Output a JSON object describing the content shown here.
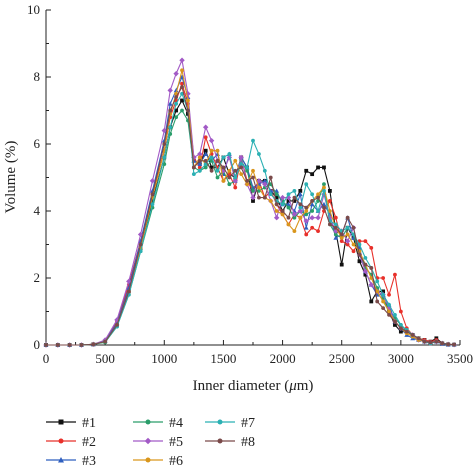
{
  "chart_data": {
    "type": "line",
    "title": "",
    "xlabel": "Inner diameter (μm)",
    "xlabel_parts": [
      "Inner diameter (",
      "μ",
      "m)"
    ],
    "ylabel": "Volume (%)",
    "xlim": [
      0,
      3500
    ],
    "ylim": [
      0,
      10
    ],
    "xticks": [
      0,
      500,
      1000,
      1500,
      2000,
      2500,
      3000,
      3500
    ],
    "xtick_labels": [
      "0",
      "500",
      "1000",
      "1500",
      "2000",
      "2500",
      "3000",
      "3500"
    ],
    "yticks": [
      0,
      2,
      4,
      6,
      8,
      10
    ],
    "ytick_labels": [
      "0",
      "2",
      "4",
      "6",
      "8",
      "10"
    ],
    "grid": false,
    "legend_placement": "below",
    "series": [
      {
        "name": "#1",
        "color": "#111111",
        "marker": "square",
        "x": [
          0,
          100,
          200,
          300,
          400,
          500,
          600,
          700,
          800,
          900,
          1000,
          1050,
          1100,
          1150,
          1200,
          1250,
          1300,
          1350,
          1400,
          1450,
          1500,
          1550,
          1600,
          1650,
          1700,
          1750,
          1800,
          1850,
          1900,
          1950,
          2000,
          2050,
          2100,
          2150,
          2200,
          2250,
          2300,
          2350,
          2400,
          2450,
          2500,
          2550,
          2600,
          2650,
          2700,
          2750,
          2800,
          2850,
          2900,
          2950,
          3000,
          3050,
          3100,
          3150,
          3200,
          3250,
          3300,
          3350,
          3400,
          3450
        ],
        "y": [
          0,
          0,
          0,
          0,
          0.02,
          0.1,
          0.6,
          1.6,
          2.9,
          4.3,
          5.6,
          6.5,
          7.0,
          7.3,
          6.9,
          5.5,
          5.4,
          5.8,
          5.3,
          5.3,
          5.6,
          5.1,
          5.0,
          5.6,
          5.3,
          4.3,
          4.9,
          4.9,
          4.6,
          4.4,
          4.0,
          4.3,
          4.3,
          4.6,
          5.2,
          5.1,
          5.3,
          5.3,
          4.6,
          3.4,
          2.4,
          3.5,
          3.2,
          2.5,
          2.1,
          1.3,
          1.6,
          1.6,
          1.0,
          0.6,
          0.4,
          0.4,
          0.3,
          0.2,
          0.15,
          0.1,
          0.2,
          0.05,
          0.02,
          0.01
        ]
      },
      {
        "name": "#2",
        "color": "#e8302a",
        "marker": "circle",
        "x": [
          0,
          100,
          200,
          300,
          400,
          500,
          600,
          700,
          800,
          900,
          1000,
          1050,
          1100,
          1150,
          1200,
          1250,
          1300,
          1350,
          1400,
          1450,
          1500,
          1550,
          1600,
          1650,
          1700,
          1750,
          1800,
          1850,
          1900,
          1950,
          2000,
          2050,
          2100,
          2150,
          2200,
          2250,
          2300,
          2350,
          2400,
          2450,
          2500,
          2550,
          2600,
          2650,
          2700,
          2750,
          2800,
          2850,
          2900,
          2950,
          3000,
          3050,
          3100,
          3150,
          3200,
          3250,
          3300,
          3350,
          3400,
          3450
        ],
        "y": [
          0,
          0,
          0,
          0,
          0.02,
          0.12,
          0.7,
          1.8,
          3.1,
          4.5,
          5.8,
          6.8,
          7.3,
          7.8,
          7.2,
          5.6,
          5.3,
          6.2,
          5.7,
          5.3,
          4.9,
          5.1,
          4.7,
          5.6,
          4.9,
          4.6,
          4.9,
          4.4,
          4.6,
          4.2,
          3.9,
          3.6,
          3.9,
          3.8,
          3.3,
          3.5,
          3.4,
          4.0,
          4.3,
          3.8,
          3.1,
          3.0,
          2.8,
          3.1,
          3.1,
          2.9,
          2.0,
          2.0,
          1.5,
          2.1,
          1.0,
          0.5,
          0.3,
          0.2,
          0.15,
          0.1,
          0.15,
          0.05,
          0.02,
          0.01
        ]
      },
      {
        "name": "#3",
        "color": "#2f5fbf",
        "marker": "triangle",
        "x": [
          0,
          100,
          200,
          300,
          400,
          500,
          600,
          700,
          800,
          900,
          1000,
          1050,
          1100,
          1150,
          1200,
          1250,
          1300,
          1350,
          1400,
          1450,
          1500,
          1550,
          1600,
          1650,
          1700,
          1750,
          1800,
          1850,
          1900,
          1950,
          2000,
          2050,
          2100,
          2150,
          2200,
          2250,
          2300,
          2350,
          2400,
          2450,
          2500,
          2550,
          2600,
          2650,
          2700,
          2750,
          2800,
          2850,
          2900,
          2950,
          3000,
          3050,
          3100,
          3150,
          3200,
          3250,
          3300,
          3350,
          3400,
          3450
        ],
        "y": [
          0,
          0,
          0,
          0,
          0.02,
          0.12,
          0.65,
          1.7,
          3.1,
          4.6,
          6.1,
          7.2,
          7.6,
          8.0,
          7.4,
          5.5,
          5.4,
          5.7,
          5.5,
          5.7,
          5.1,
          5.7,
          4.9,
          5.6,
          5.3,
          4.7,
          4.8,
          4.9,
          4.6,
          4.6,
          4.2,
          4.2,
          4.0,
          4.5,
          3.5,
          4.2,
          4.0,
          4.2,
          3.9,
          3.2,
          3.3,
          3.8,
          3.2,
          2.9,
          2.2,
          1.8,
          1.5,
          1.5,
          1.2,
          0.7,
          0.5,
          0.3,
          0.2,
          0.15,
          0.1,
          0.08,
          0.1,
          0.03,
          0.01,
          0.01
        ]
      },
      {
        "name": "#4",
        "color": "#2a9d6a",
        "marker": "circle",
        "x": [
          0,
          100,
          200,
          300,
          400,
          500,
          600,
          700,
          800,
          900,
          1000,
          1050,
          1100,
          1150,
          1200,
          1250,
          1300,
          1350,
          1400,
          1450,
          1500,
          1550,
          1600,
          1650,
          1700,
          1750,
          1800,
          1850,
          1900,
          1950,
          2000,
          2050,
          2100,
          2150,
          2200,
          2250,
          2300,
          2350,
          2400,
          2450,
          2500,
          2550,
          2600,
          2650,
          2700,
          2750,
          2800,
          2850,
          2900,
          2950,
          3000,
          3050,
          3100,
          3150,
          3200,
          3250,
          3300,
          3350,
          3400,
          3450
        ],
        "y": [
          0,
          0,
          0,
          0,
          0.02,
          0.08,
          0.55,
          1.5,
          2.8,
          4.1,
          5.4,
          6.3,
          6.8,
          7.0,
          6.7,
          5.3,
          5.2,
          5.3,
          5.5,
          5.0,
          5.2,
          4.8,
          4.9,
          5.5,
          5.2,
          4.6,
          4.6,
          4.7,
          4.8,
          4.5,
          4.3,
          4.1,
          3.8,
          4.0,
          3.9,
          4.0,
          4.3,
          4.8,
          3.6,
          3.3,
          3.2,
          3.5,
          3.3,
          2.7,
          2.3,
          2.1,
          1.7,
          1.4,
          1.0,
          0.8,
          0.6,
          0.4,
          0.3,
          0.2,
          0.1,
          0.05,
          0.1,
          0.05,
          0.02,
          0.01
        ]
      },
      {
        "name": "#5",
        "color": "#a25ac6",
        "marker": "diamond",
        "x": [
          0,
          100,
          200,
          300,
          400,
          500,
          600,
          700,
          800,
          900,
          1000,
          1050,
          1100,
          1150,
          1200,
          1250,
          1300,
          1350,
          1400,
          1450,
          1500,
          1550,
          1600,
          1650,
          1700,
          1750,
          1800,
          1850,
          1900,
          1950,
          2000,
          2050,
          2100,
          2150,
          2200,
          2250,
          2300,
          2350,
          2400,
          2450,
          2500,
          2550,
          2600,
          2650,
          2700,
          2750,
          2800,
          2850,
          2900,
          2950,
          3000,
          3050,
          3100,
          3150,
          3200,
          3250,
          3300,
          3350,
          3400,
          3450
        ],
        "y": [
          0,
          0,
          0,
          0,
          0.02,
          0.15,
          0.75,
          1.9,
          3.3,
          4.9,
          6.4,
          7.6,
          8.1,
          8.5,
          7.5,
          5.6,
          5.7,
          6.5,
          6.1,
          5.5,
          5.2,
          5.6,
          4.9,
          5.6,
          4.8,
          4.4,
          4.9,
          4.8,
          4.3,
          3.8,
          4.4,
          4.4,
          3.9,
          4.0,
          3.7,
          3.8,
          3.8,
          4.5,
          3.8,
          3.4,
          3.4,
          3.1,
          3.5,
          2.7,
          2.2,
          1.8,
          1.6,
          1.5,
          1.1,
          0.7,
          0.5,
          0.4,
          0.3,
          0.15,
          0.1,
          0.05,
          0.1,
          0.05,
          0.02,
          0.01
        ]
      },
      {
        "name": "#6",
        "color": "#d9961c",
        "marker": "circle",
        "x": [
          0,
          100,
          200,
          300,
          400,
          500,
          600,
          700,
          800,
          900,
          1000,
          1050,
          1100,
          1150,
          1200,
          1250,
          1300,
          1350,
          1400,
          1450,
          1500,
          1550,
          1600,
          1650,
          1700,
          1750,
          1800,
          1850,
          1900,
          1950,
          2000,
          2050,
          2100,
          2150,
          2200,
          2250,
          2300,
          2350,
          2400,
          2450,
          2500,
          2550,
          2600,
          2650,
          2700,
          2750,
          2800,
          2850,
          2900,
          2950,
          3000,
          3050,
          3100,
          3150,
          3200,
          3250,
          3300,
          3350,
          3400,
          3450
        ],
        "y": [
          0,
          0,
          0,
          0,
          0.02,
          0.1,
          0.6,
          1.6,
          2.9,
          4.4,
          5.8,
          6.9,
          7.5,
          8.2,
          7.3,
          5.3,
          5.6,
          5.4,
          5.8,
          5.8,
          4.9,
          5.2,
          5.5,
          5.1,
          4.8,
          5.2,
          4.7,
          4.4,
          4.3,
          4.0,
          3.9,
          3.6,
          3.4,
          3.8,
          4.0,
          4.3,
          4.5,
          4.7,
          4.0,
          3.5,
          3.2,
          3.3,
          3.0,
          2.8,
          2.4,
          2.0,
          1.6,
          1.3,
          1.0,
          0.7,
          0.5,
          0.35,
          0.25,
          0.15,
          0.1,
          0.05,
          0.1,
          0.05,
          0.02,
          0.01
        ]
      },
      {
        "name": "#7",
        "color": "#2bb0b3",
        "marker": "circle",
        "x": [
          0,
          100,
          200,
          300,
          400,
          500,
          600,
          700,
          800,
          900,
          1000,
          1050,
          1100,
          1150,
          1200,
          1250,
          1300,
          1350,
          1400,
          1450,
          1500,
          1550,
          1600,
          1650,
          1700,
          1750,
          1800,
          1850,
          1900,
          1950,
          2000,
          2050,
          2100,
          2150,
          2200,
          2250,
          2300,
          2350,
          2400,
          2450,
          2500,
          2550,
          2600,
          2650,
          2700,
          2750,
          2800,
          2850,
          2900,
          2950,
          3000,
          3050,
          3100,
          3150,
          3200,
          3250,
          3300,
          3350,
          3400,
          3450
        ],
        "y": [
          0,
          0,
          0,
          0,
          0.02,
          0.1,
          0.55,
          1.5,
          2.8,
          4.2,
          5.6,
          6.5,
          7.2,
          7.5,
          7.0,
          5.1,
          5.2,
          5.4,
          5.6,
          5.2,
          5.6,
          5.7,
          5.0,
          5.4,
          5.3,
          6.1,
          5.7,
          5.2,
          4.5,
          4.3,
          4.2,
          4.5,
          4.6,
          4.1,
          4.8,
          4.5,
          4.0,
          4.6,
          3.7,
          3.6,
          3.4,
          3.5,
          3.3,
          3.0,
          2.6,
          2.3,
          1.9,
          1.5,
          1.2,
          0.9,
          0.6,
          0.45,
          0.3,
          0.2,
          0.1,
          0.05,
          0.1,
          0.05,
          0.02,
          0.01
        ]
      },
      {
        "name": "#8",
        "color": "#7a4a4a",
        "marker": "circle",
        "x": [
          0,
          100,
          200,
          300,
          400,
          500,
          600,
          700,
          800,
          900,
          1000,
          1050,
          1100,
          1150,
          1200,
          1250,
          1300,
          1350,
          1400,
          1450,
          1500,
          1550,
          1600,
          1650,
          1700,
          1750,
          1800,
          1850,
          1900,
          1950,
          2000,
          2050,
          2100,
          2150,
          2200,
          2250,
          2300,
          2350,
          2400,
          2450,
          2500,
          2550,
          2600,
          2650,
          2700,
          2750,
          2800,
          2850,
          2900,
          2950,
          3000,
          3050,
          3100,
          3150,
          3200,
          3250,
          3300,
          3350,
          3400,
          3450
        ],
        "y": [
          0,
          0,
          0,
          0,
          0.02,
          0.1,
          0.6,
          1.6,
          3.0,
          4.5,
          6.0,
          7.0,
          7.4,
          7.7,
          7.0,
          5.3,
          5.5,
          5.5,
          5.2,
          5.5,
          5.3,
          5.0,
          5.2,
          5.3,
          4.9,
          5.0,
          4.4,
          4.4,
          5.0,
          4.2,
          4.0,
          3.8,
          4.4,
          4.2,
          4.1,
          4.3,
          4.4,
          4.1,
          3.6,
          3.5,
          3.3,
          3.8,
          3.5,
          2.7,
          2.4,
          2.3,
          1.3,
          1.1,
          0.9,
          0.7,
          0.5,
          0.4,
          0.3,
          0.2,
          0.1,
          0.08,
          0.1,
          0.05,
          0.02,
          0.01
        ]
      }
    ]
  }
}
